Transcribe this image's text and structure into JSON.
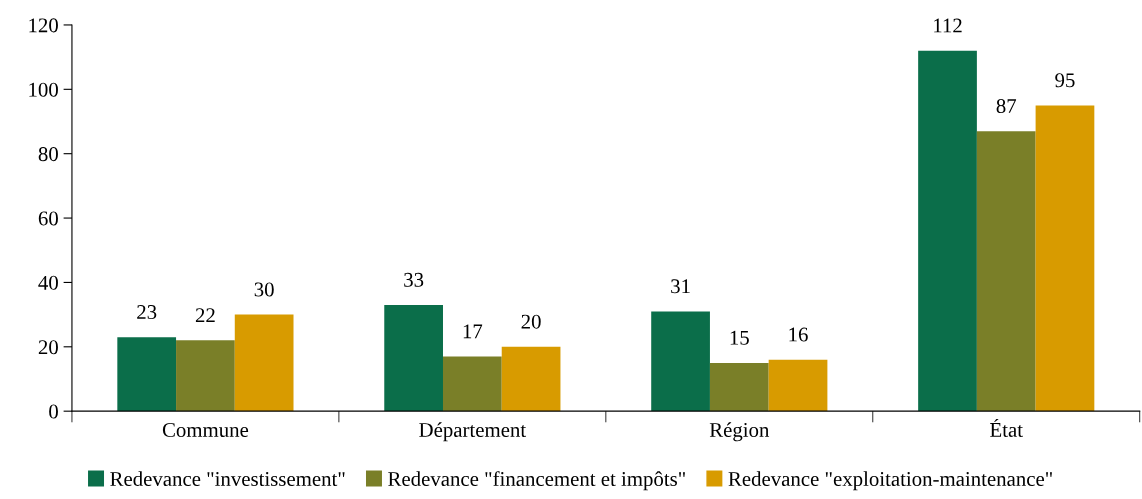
{
  "chart_data": {
    "type": "bar",
    "categories": [
      "Commune",
      "Département",
      "Région",
      "État"
    ],
    "series": [
      {
        "name": "Redevance \"investissement\"",
        "color": "#0b6e4a",
        "values": [
          23,
          33,
          31,
          112
        ]
      },
      {
        "name": "Redevance \"financement et impôts\"",
        "color": "#7a7f28",
        "values": [
          22,
          17,
          15,
          87
        ]
      },
      {
        "name": "Redevance \"exploitation-maintenance\"",
        "color": "#d89b00",
        "values": [
          30,
          20,
          16,
          95
        ]
      }
    ],
    "ylim": [
      0,
      120
    ],
    "yticks": [
      0,
      20,
      40,
      60,
      80,
      100,
      120
    ],
    "data_labels": true,
    "grid": false,
    "legend": "bottom"
  }
}
